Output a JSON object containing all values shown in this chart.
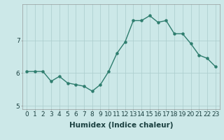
{
  "x": [
    0,
    1,
    2,
    3,
    4,
    5,
    6,
    7,
    8,
    9,
    10,
    11,
    12,
    13,
    14,
    15,
    16,
    17,
    18,
    19,
    20,
    21,
    22,
    23
  ],
  "y": [
    6.05,
    6.05,
    6.05,
    5.75,
    5.9,
    5.7,
    5.65,
    5.6,
    5.45,
    5.65,
    6.05,
    6.6,
    6.95,
    7.6,
    7.6,
    7.75,
    7.55,
    7.6,
    7.2,
    7.2,
    6.9,
    6.55,
    6.45,
    6.2
  ],
  "line_color": "#2e7d6e",
  "bg_color": "#cce8e8",
  "grid_color": "#aacccc",
  "xlabel": "Humidex (Indice chaleur)",
  "ylim": [
    4.9,
    8.1
  ],
  "xlim": [
    -0.5,
    23.5
  ],
  "yticks": [
    5,
    6,
    7
  ],
  "xticks": [
    0,
    1,
    2,
    3,
    4,
    5,
    6,
    7,
    8,
    9,
    10,
    11,
    12,
    13,
    14,
    15,
    16,
    17,
    18,
    19,
    20,
    21,
    22,
    23
  ],
  "xlabel_fontsize": 7.5,
  "tick_fontsize": 6.5,
  "marker_size": 2.2,
  "line_width": 1.0
}
